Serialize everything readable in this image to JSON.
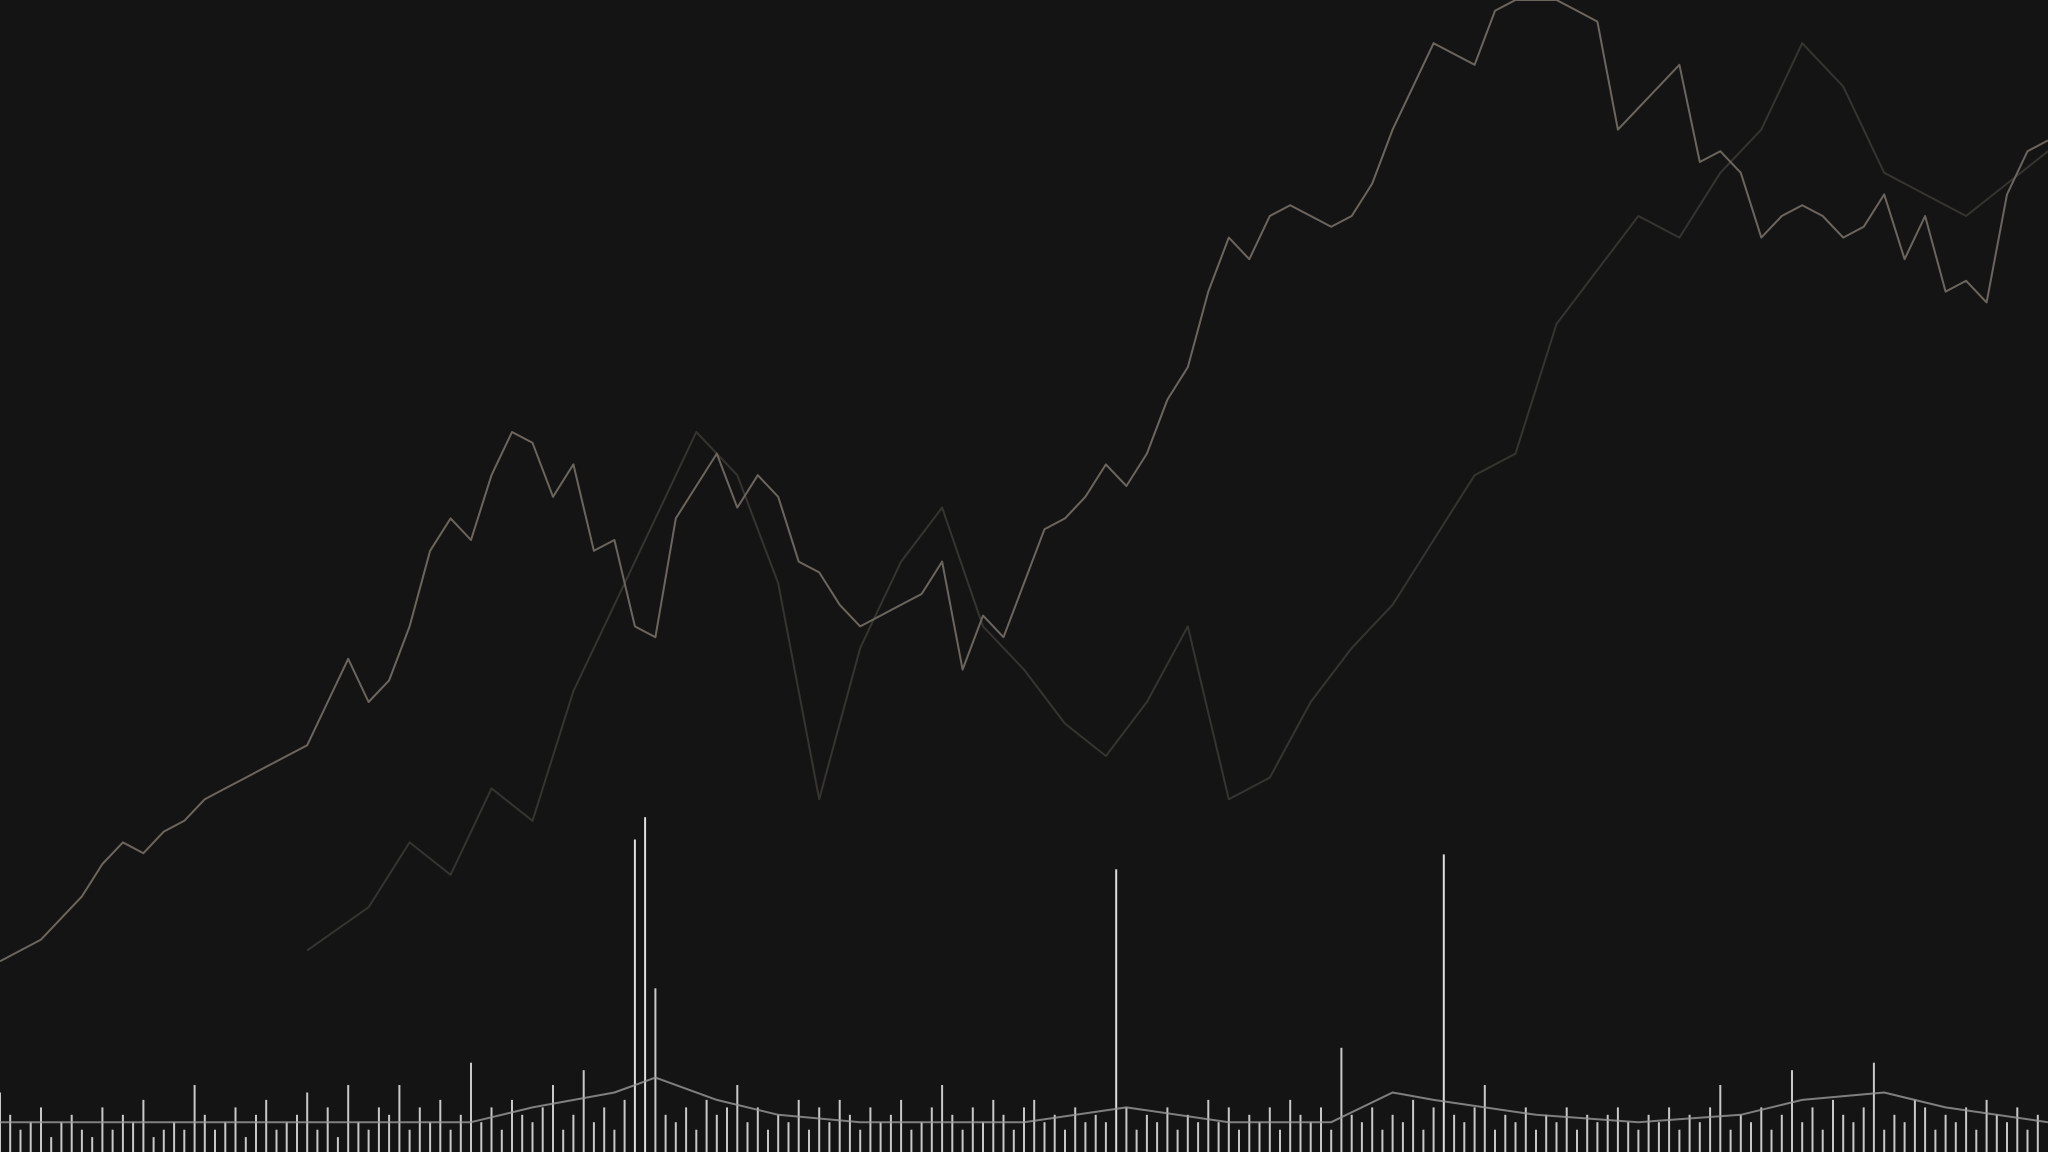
{
  "colors": {
    "background": "#141414",
    "price_line_primary": "#6b655e",
    "price_line_secondary": "#3a3733",
    "volume_bars": "#e8e8e8",
    "volume_bars_faded": "#5a524a",
    "volume_ma": "#9a9a9a"
  },
  "chart_data": {
    "type": "line",
    "title": "",
    "xlabel": "",
    "ylabel": "",
    "grid": false,
    "legend": "none",
    "x_range": [
      0,
      100
    ],
    "ylim": [
      0,
      100
    ],
    "series": [
      {
        "role": "price-primary",
        "x": [
          0,
          2,
          4,
          5,
          6,
          7,
          8,
          9,
          10,
          11,
          12,
          13,
          14,
          15,
          16,
          17,
          18,
          19,
          20,
          21,
          22,
          23,
          24,
          25,
          26,
          27,
          28,
          29,
          30,
          31,
          32,
          33,
          34,
          35,
          36,
          37,
          38,
          39,
          40,
          41,
          42,
          43,
          44,
          45,
          46,
          47,
          48,
          49,
          50,
          51,
          52,
          53,
          54,
          55,
          56,
          57,
          58,
          59,
          60,
          61,
          62,
          63,
          64,
          65,
          66,
          67,
          68,
          69,
          70,
          71,
          72,
          73,
          74,
          75,
          76,
          77,
          78,
          79,
          80,
          81,
          82,
          83,
          84,
          85,
          86,
          87,
          88,
          89,
          90,
          91,
          92,
          93,
          94,
          95,
          96,
          97,
          98,
          99,
          100
        ],
        "values": [
          11,
          13,
          17,
          20,
          22,
          21,
          23,
          24,
          26,
          27,
          28,
          29,
          30,
          31,
          35,
          39,
          35,
          37,
          42,
          49,
          52,
          50,
          56,
          60,
          59,
          54,
          57,
          49,
          50,
          42,
          41,
          52,
          55,
          58,
          53,
          56,
          54,
          48,
          47,
          44,
          42,
          43,
          44,
          45,
          48,
          38,
          43,
          41,
          46,
          51,
          52,
          54,
          57,
          55,
          58,
          63,
          66,
          73,
          78,
          76,
          80,
          81,
          80,
          79,
          80,
          83,
          88,
          92,
          96,
          95,
          94,
          99,
          100,
          100,
          100,
          99,
          98,
          88,
          90,
          92,
          94,
          85,
          86,
          84,
          78,
          80,
          81,
          80,
          78,
          79,
          82,
          76,
          80,
          73,
          74,
          72,
          82,
          86,
          87
        ]
      },
      {
        "role": "price-secondary",
        "x": [
          15,
          18,
          20,
          22,
          24,
          26,
          28,
          30,
          32,
          34,
          36,
          38,
          40,
          42,
          44,
          46,
          48,
          50,
          52,
          54,
          56,
          58,
          60,
          62,
          64,
          66,
          68,
          70,
          72,
          74,
          76,
          78,
          80,
          82,
          84,
          86,
          88,
          90,
          92,
          94,
          96,
          98,
          100
        ],
        "values": [
          12,
          16,
          22,
          19,
          27,
          24,
          36,
          44,
          52,
          60,
          56,
          46,
          26,
          40,
          48,
          53,
          42,
          38,
          33,
          30,
          35,
          42,
          26,
          28,
          35,
          40,
          44,
          50,
          56,
          58,
          70,
          75,
          80,
          78,
          84,
          88,
          96,
          92,
          84,
          82,
          80,
          83,
          86
        ]
      },
      {
        "role": "volume",
        "x": [
          0,
          0.5,
          1,
          1.5,
          2,
          2.5,
          3,
          3.5,
          4,
          4.5,
          5,
          5.5,
          6,
          6.5,
          7,
          7.5,
          8,
          8.5,
          9,
          9.5,
          10,
          10.5,
          11,
          11.5,
          12,
          12.5,
          13,
          13.5,
          14,
          14.5,
          15,
          15.5,
          16,
          16.5,
          17,
          17.5,
          18,
          18.5,
          19,
          19.5,
          20,
          20.5,
          21,
          21.5,
          22,
          22.5,
          23,
          23.5,
          24,
          24.5,
          25,
          25.5,
          26,
          26.5,
          27,
          27.5,
          28,
          28.5,
          29,
          29.5,
          30,
          30.5,
          31,
          31.5,
          32,
          32.5,
          33,
          33.5,
          34,
          34.5,
          35,
          35.5,
          36,
          36.5,
          37,
          37.5,
          38,
          38.5,
          39,
          39.5,
          40,
          40.5,
          41,
          41.5,
          42,
          42.5,
          43,
          43.5,
          44,
          44.5,
          45,
          45.5,
          46,
          46.5,
          47,
          47.5,
          48,
          48.5,
          49,
          49.5,
          50,
          50.5,
          51,
          51.5,
          52,
          52.5,
          53,
          53.5,
          54,
          54.5,
          55,
          55.5,
          56,
          56.5,
          57,
          57.5,
          58,
          58.5,
          59,
          59.5,
          60,
          60.5,
          61,
          61.5,
          62,
          62.5,
          63,
          63.5,
          64,
          64.5,
          65,
          65.5,
          66,
          66.5,
          67,
          67.5,
          68,
          68.5,
          69,
          69.5,
          70,
          70.5,
          71,
          71.5,
          72,
          72.5,
          73,
          73.5,
          74,
          74.5,
          75,
          75.5,
          76,
          76.5,
          77,
          77.5,
          78,
          78.5,
          79,
          79.5,
          80,
          80.5,
          81,
          81.5,
          82,
          82.5,
          83,
          83.5,
          84,
          84.5,
          85,
          85.5,
          86,
          86.5,
          87,
          87.5,
          88,
          88.5,
          89,
          89.5,
          90,
          90.5,
          91,
          91.5,
          92,
          92.5,
          93,
          93.5,
          94,
          94.5,
          95,
          95.5,
          96,
          96.5,
          97,
          97.5,
          98,
          98.5,
          99,
          99.5
        ],
        "values": [
          8,
          5,
          3,
          4,
          6,
          2,
          4,
          5,
          3,
          2,
          6,
          3,
          5,
          4,
          7,
          2,
          3,
          4,
          3,
          9,
          5,
          3,
          4,
          6,
          2,
          5,
          7,
          3,
          4,
          5,
          8,
          3,
          6,
          2,
          9,
          4,
          3,
          6,
          5,
          9,
          3,
          6,
          4,
          7,
          3,
          5,
          12,
          4,
          6,
          3,
          7,
          5,
          4,
          6,
          9,
          3,
          5,
          11,
          4,
          6,
          3,
          7,
          42,
          45,
          22,
          5,
          4,
          6,
          3,
          7,
          5,
          6,
          9,
          4,
          6,
          3,
          5,
          4,
          7,
          3,
          6,
          4,
          7,
          5,
          3,
          6,
          4,
          5,
          7,
          3,
          4,
          6,
          9,
          5,
          3,
          6,
          4,
          7,
          5,
          3,
          6,
          7,
          4,
          5,
          3,
          6,
          4,
          5,
          4,
          38,
          6,
          3,
          5,
          4,
          6,
          3,
          5,
          4,
          7,
          4,
          6,
          3,
          5,
          4,
          6,
          3,
          7,
          5,
          4,
          6,
          3,
          14,
          5,
          4,
          6,
          3,
          5,
          4,
          7,
          3,
          6,
          40,
          5,
          4,
          6,
          9,
          3,
          5,
          4,
          6,
          3,
          5,
          4,
          6,
          3,
          5,
          4,
          5,
          6,
          4,
          3,
          5,
          4,
          6,
          3,
          5,
          4,
          6,
          9,
          3,
          5,
          4,
          6,
          3,
          5,
          11,
          4,
          6,
          3,
          7,
          5,
          4,
          6,
          12,
          3,
          5,
          4,
          7,
          6,
          3,
          5,
          4,
          6,
          3,
          7,
          5,
          4,
          6,
          3,
          5
        ]
      },
      {
        "role": "volume-ma",
        "x": [
          0,
          5,
          10,
          15,
          20,
          23,
          26,
          30,
          32,
          35,
          38,
          42,
          45,
          50,
          55,
          60,
          65,
          68,
          70,
          75,
          80,
          85,
          88,
          92,
          95,
          100
        ],
        "values": [
          4,
          4,
          4,
          4,
          4,
          4,
          6,
          8,
          10,
          7,
          5,
          4,
          4,
          4,
          6,
          4,
          4,
          8,
          7,
          5,
          4,
          5,
          7,
          8,
          6,
          4
        ]
      }
    ]
  }
}
